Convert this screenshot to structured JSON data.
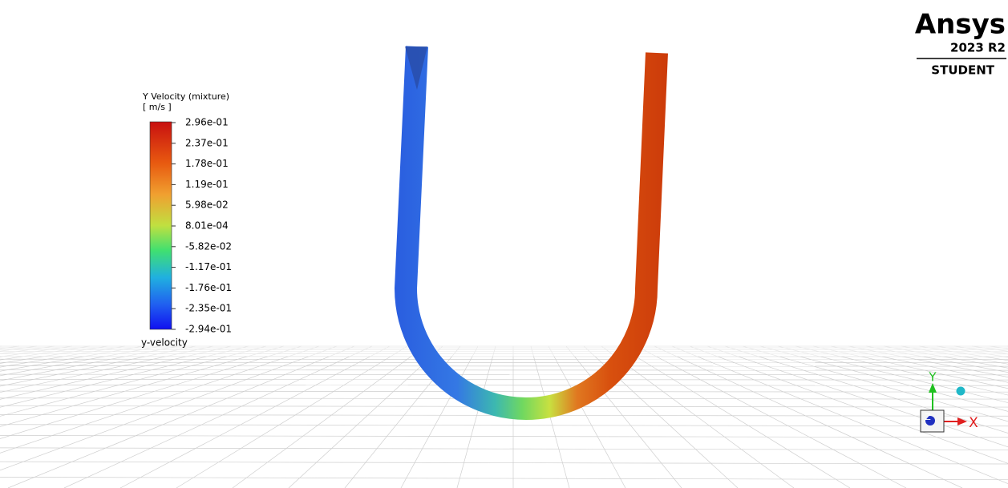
{
  "legend": {
    "title": "Y Velocity (mixture)",
    "unit": "[ m/s ]",
    "labels": [
      "2.96e-01",
      "2.37e-01",
      "1.78e-01",
      "1.19e-01",
      "5.98e-02",
      "8.01e-04",
      "-5.82e-02",
      "-1.17e-01",
      "-1.76e-01",
      "-2.35e-01",
      "-2.94e-01"
    ],
    "footer": "y-velocity"
  },
  "logo": {
    "brand": "Ansys",
    "version": "2023 R2",
    "edition": "STUDENT"
  },
  "triad": {
    "y": "Y",
    "x": "X",
    "z": "Z"
  }
}
